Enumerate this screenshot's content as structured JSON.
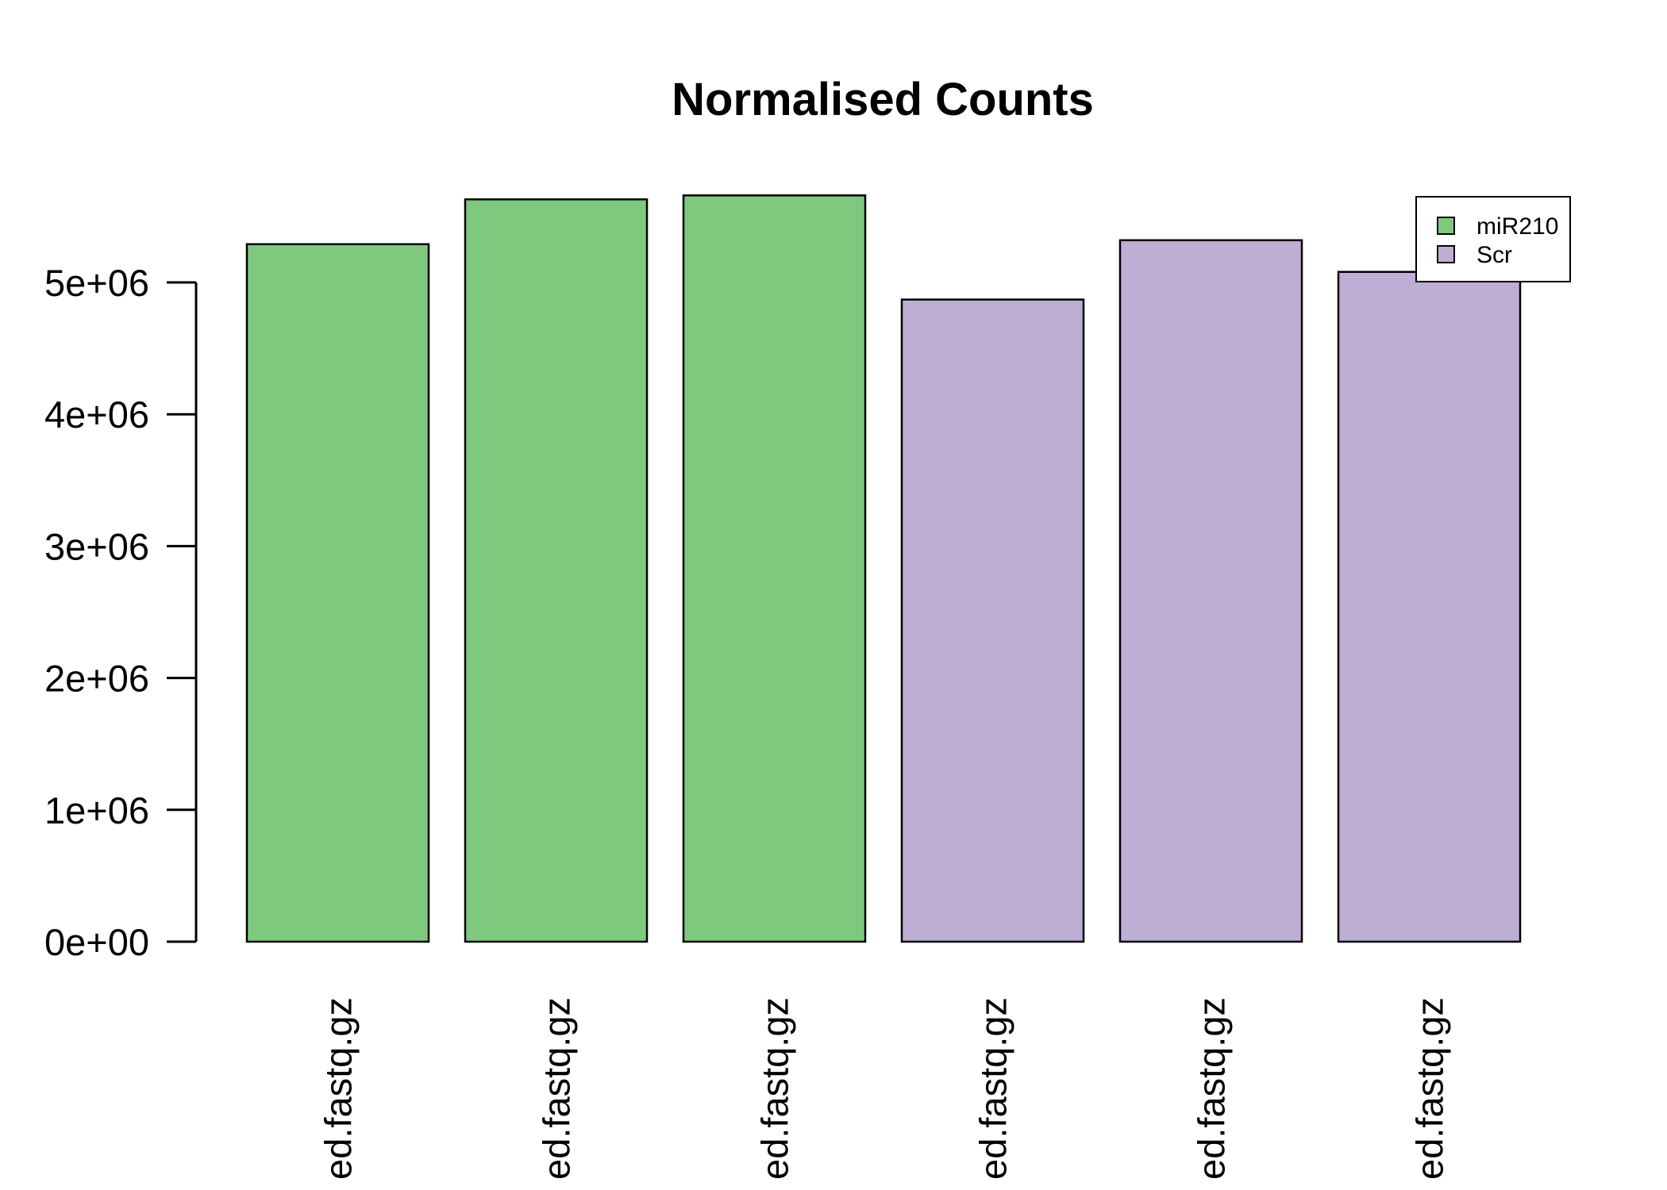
{
  "chart_data": {
    "type": "bar",
    "title": "Normalised Counts",
    "xlabel": "",
    "ylabel": "",
    "categories": [
      "ed.fastq.gz",
      "ed.fastq.gz",
      "ed.fastq.gz",
      "ed.fastq.gz",
      "ed.fastq.gz",
      "ed.fastq.gz"
    ],
    "values": [
      5290000,
      5630000,
      5660000,
      4870000,
      5320000,
      5080000
    ],
    "groups": [
      "miR210",
      "miR210",
      "miR210",
      "Scr",
      "Scr",
      "Scr"
    ],
    "ylim": [
      0,
      5700000
    ],
    "yticks": [
      0,
      1000000,
      2000000,
      3000000,
      4000000,
      5000000
    ],
    "ytick_labels": [
      "0e+00",
      "1e+06",
      "2e+06",
      "3e+06",
      "4e+06",
      "5e+06"
    ],
    "grid": false,
    "legend": {
      "position": "top-right",
      "entries": [
        {
          "label": "miR210",
          "color": "#7fc97f"
        },
        {
          "label": "Scr",
          "color": "#beaed4"
        }
      ]
    },
    "colors": {
      "miR210": "#7fc97f",
      "Scr": "#beaed4",
      "outline": "#000000"
    }
  }
}
